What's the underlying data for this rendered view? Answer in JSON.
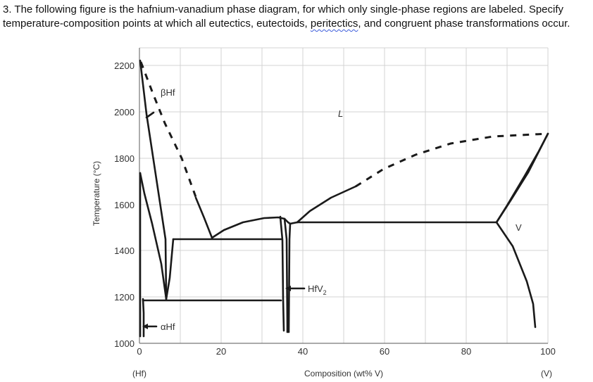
{
  "question": {
    "line1": "3. The following figure is the hafnium-vanadium phase diagram, for which only single-phase regions are labeled.  Specify",
    "line2_start": "temperature-composition points at which all eutectics, eutectoids,",
    "line2_link": "peritectics",
    "line2_end": ", and congruent phase transformations occur."
  },
  "diagram": {
    "y_axis_title": "Temperature (°C)",
    "x_axis_title": "Composition (wt% V)",
    "x_left_label": "(Hf)",
    "x_right_label": "(V)",
    "x_ticks": [
      "0",
      "20",
      "40",
      "60",
      "80",
      "100"
    ],
    "y_ticks": [
      "1000",
      "1200",
      "1400",
      "1600",
      "1800",
      "2000",
      "2200"
    ],
    "regions": {
      "beta": "βHf",
      "liquid": "L",
      "alpha": "αHf",
      "compound_base": "HfV",
      "compound_sub": "2",
      "v": "V"
    },
    "x_range": [
      0,
      100
    ],
    "y_range": [
      1000,
      2200
    ],
    "grid": true
  }
}
